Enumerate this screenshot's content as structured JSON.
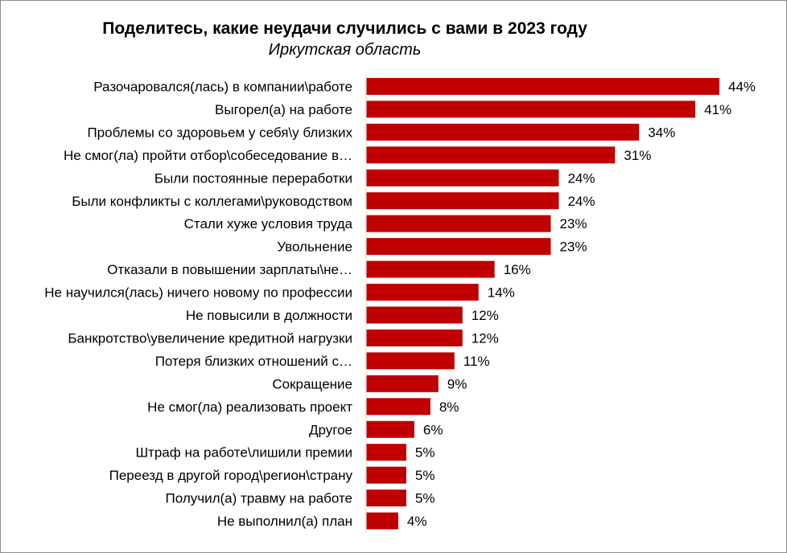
{
  "chart_data": {
    "type": "bar",
    "orientation": "horizontal",
    "title": "Поделитесь, какие неудачи случились с вами в 2023 году",
    "subtitle": "Иркутская область",
    "categories": [
      "Разочаровался(лась) в компании\\работе",
      "Выгорел(а) на работе",
      "Проблемы со здоровьем у себя\\у близких",
      "Не смог(ла) пройти отбор\\собеседование в…",
      "Были постоянные переработки",
      "Были конфликты с коллегами\\руководством",
      "Стали хуже условия труда",
      "Увольнение",
      "Отказали в повышении зарплаты\\не…",
      "Не научился(лась) ничего новому по профессии",
      "Не повысили в должности",
      "Банкротство\\увеличение кредитной нагрузки",
      "Потеря близких отношений с…",
      "Сокращение",
      "Не смог(ла) реализовать проект",
      "Другое",
      "Штраф на работе\\лишили премии",
      "Переезд в другой город\\регион\\страну",
      "Получил(а) травму на работе",
      "Не выполнил(а) план"
    ],
    "values": [
      44,
      41,
      34,
      31,
      24,
      24,
      23,
      23,
      16,
      14,
      12,
      12,
      11,
      9,
      8,
      6,
      5,
      5,
      5,
      4
    ],
    "value_labels": [
      "44%",
      "41%",
      "34%",
      "31%",
      "24%",
      "24%",
      "23%",
      "23%",
      "16%",
      "14%",
      "12%",
      "12%",
      "11%",
      "9%",
      "8%",
      "6%",
      "5%",
      "5%",
      "5%",
      "4%"
    ],
    "bar_color": "#C00000",
    "xlim": [
      0,
      44
    ],
    "grid": false,
    "legend": "none"
  }
}
